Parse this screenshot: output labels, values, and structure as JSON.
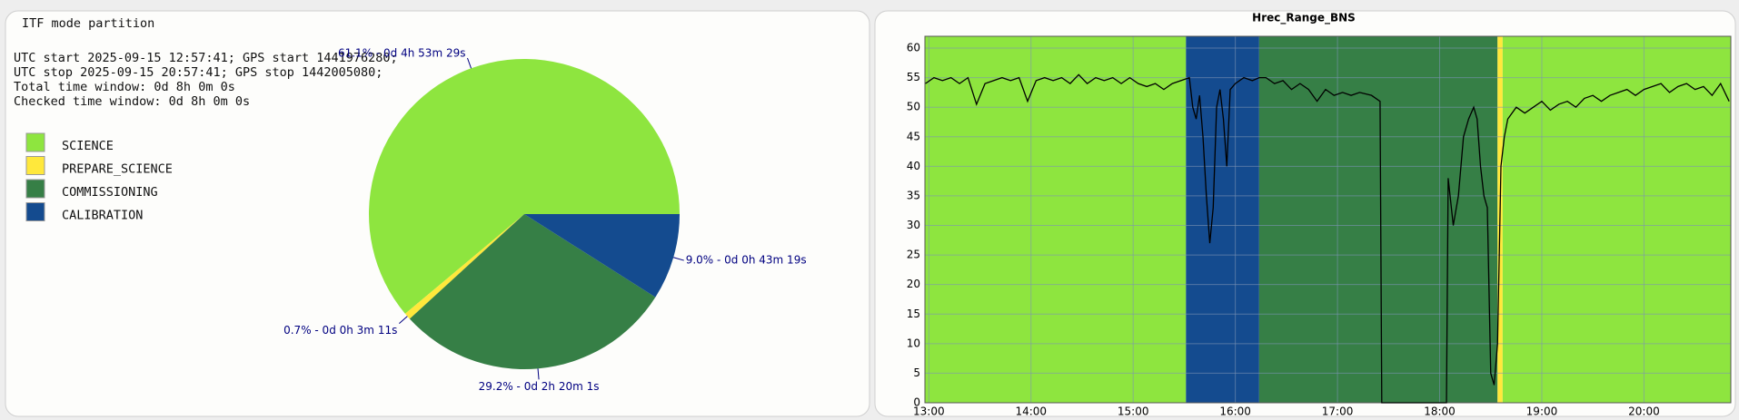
{
  "chart_data": [
    {
      "type": "pie",
      "title": "ITF mode partition",
      "info_lines": [
        "UTC start 2025-09-15 12:57:41; GPS start 1441976280;",
        "UTC stop 2025-09-15 20:57:41; GPS stop 1442005080;",
        "Total time window: 0d 8h 0m 0s",
        "Checked time window: 0d 8h 0m 0s"
      ],
      "categories": [
        "SCIENCE",
        "PREPARE_SCIENCE",
        "COMMISSIONING",
        "CALIBRATION"
      ],
      "values": [
        61.1,
        0.7,
        29.2,
        9.0
      ],
      "value_labels": [
        "61.1% - 0d 4h 53m 29s",
        "0.7% - 0d 0h 3m 11s",
        "29.2% - 0d 2h 20m 1s",
        "9.0% - 0d 0h 43m 19s"
      ],
      "colors": [
        "#8ee53f",
        "#ffe83b",
        "#367f46",
        "#144b8f"
      ]
    },
    {
      "type": "line",
      "title": "Hrec_Range_BNS",
      "x": [
        778,
        783,
        788,
        793,
        798,
        803,
        808,
        813,
        818,
        823,
        828,
        833,
        838,
        843,
        848,
        853,
        858,
        863,
        868,
        873,
        878,
        883,
        888,
        893,
        898,
        903,
        908,
        913,
        918,
        923,
        928,
        933,
        935,
        937,
        939,
        941,
        943,
        945,
        947,
        949,
        951,
        953,
        955,
        957,
        960,
        965,
        970,
        974,
        978,
        983,
        988,
        993,
        998,
        1003,
        1008,
        1013,
        1018,
        1023,
        1028,
        1033,
        1040,
        1045,
        1046,
        1050,
        1060,
        1070,
        1080,
        1084,
        1085,
        1088,
        1091,
        1094,
        1097,
        1100,
        1102,
        1104,
        1106,
        1108,
        1110,
        1112,
        1114,
        1116,
        1118,
        1120,
        1125,
        1130,
        1135,
        1140,
        1145,
        1150,
        1155,
        1160,
        1165,
        1170,
        1175,
        1180,
        1185,
        1190,
        1195,
        1200,
        1205,
        1210,
        1215,
        1220,
        1225,
        1230,
        1235,
        1240,
        1245,
        1250
      ],
      "series": [
        {
          "color": "#000000",
          "values": [
            54,
            55,
            54.5,
            55,
            54,
            55,
            50.5,
            54,
            54.5,
            55,
            54.5,
            55,
            51,
            54.5,
            55,
            54.5,
            55,
            54,
            55.5,
            54,
            55,
            54.5,
            55,
            54,
            55,
            54,
            53.5,
            54,
            53,
            54,
            54.5,
            55,
            50,
            48,
            52,
            45,
            35,
            27,
            33,
            50,
            53,
            48,
            40,
            53,
            54,
            55,
            54.5,
            55,
            55,
            54,
            54.5,
            53,
            54,
            53,
            51,
            53,
            52,
            52.5,
            52,
            52.5,
            52,
            51,
            0,
            0,
            0,
            0,
            0,
            0,
            38,
            30,
            35,
            45,
            48,
            50,
            48,
            40,
            35,
            33,
            5,
            3,
            10,
            40,
            45,
            48,
            50,
            49,
            50,
            51,
            49.5,
            50.5,
            51,
            50,
            51.5,
            52,
            51,
            52,
            52.5,
            53,
            52,
            53,
            53.5,
            54,
            52.5,
            53.5,
            54,
            53,
            53.5,
            52,
            54,
            51
          ]
        }
      ],
      "bands": [
        {
          "start": 777.7,
          "end": 931,
          "color": "#8ee53f"
        },
        {
          "start": 931,
          "end": 974,
          "color": "#144b8f"
        },
        {
          "start": 974,
          "end": 1114,
          "color": "#367f46"
        },
        {
          "start": 1114,
          "end": 1117,
          "color": "#ffe83b"
        },
        {
          "start": 1117,
          "end": 1251,
          "color": "#8ee53f"
        }
      ],
      "xlim": [
        777.7,
        1251
      ],
      "ylim": [
        0,
        62
      ],
      "xticks": [
        {
          "value": 780,
          "label": "13:00"
        },
        {
          "value": 840,
          "label": "14:00"
        },
        {
          "value": 900,
          "label": "15:00"
        },
        {
          "value": 960,
          "label": "16:00"
        },
        {
          "value": 1020,
          "label": "17:00"
        },
        {
          "value": 1080,
          "label": "18:00"
        },
        {
          "value": 1140,
          "label": "19:00"
        },
        {
          "value": 1200,
          "label": "20:00"
        }
      ],
      "yticks": [
        0,
        5,
        10,
        15,
        20,
        25,
        30,
        35,
        40,
        45,
        50,
        55,
        60
      ],
      "grid": true
    }
  ]
}
